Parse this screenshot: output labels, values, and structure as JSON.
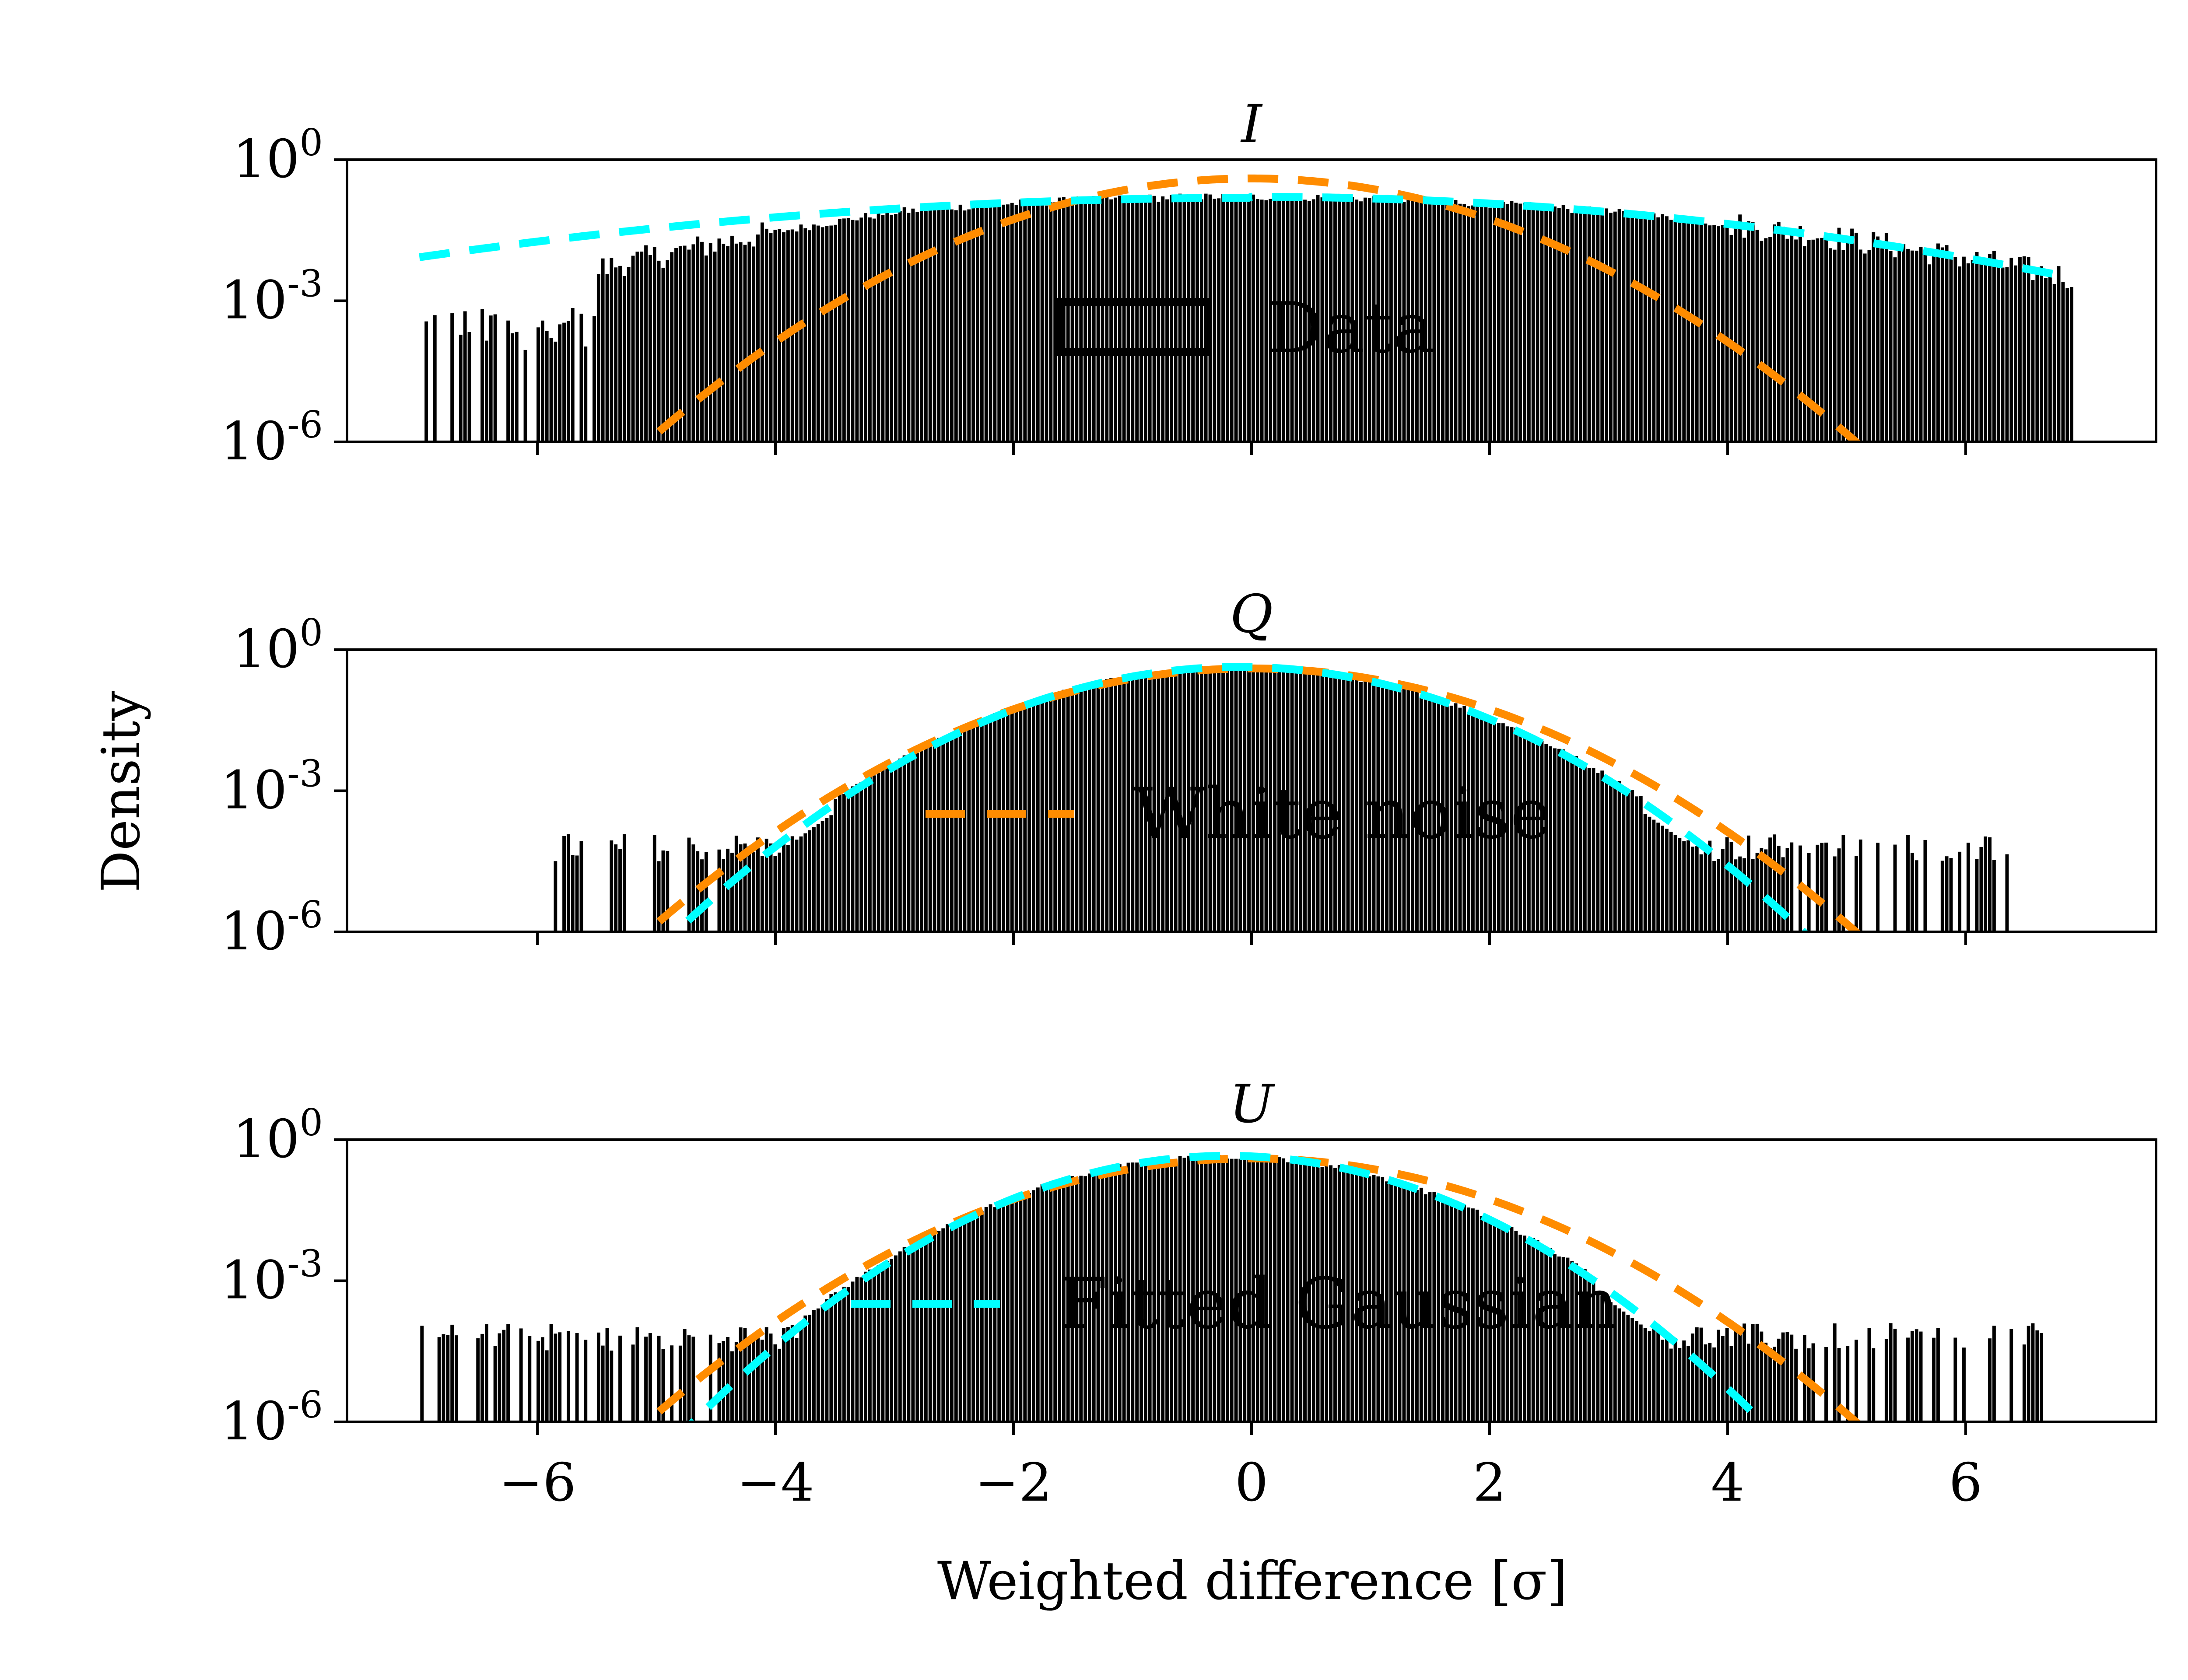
{
  "colors": {
    "data": "#000000",
    "white_noise": "#ff8c00",
    "fitted_gaussian": "#00ffff"
  },
  "chart_data": {
    "type": "histogram",
    "xlabel": "Weighted difference [σ]",
    "ylabel": "Density",
    "xlim": [
      -7.6,
      7.6
    ],
    "ylim": [
      1e-06,
      1
    ],
    "yscale": "log",
    "x_ticks": [
      {
        "value": -6,
        "label": "−6"
      },
      {
        "value": -4,
        "label": "−4"
      },
      {
        "value": -2,
        "label": "−2"
      },
      {
        "value": 0,
        "label": "0"
      },
      {
        "value": 2,
        "label": "2"
      },
      {
        "value": 4,
        "label": "4"
      },
      {
        "value": 6,
        "label": "6"
      }
    ],
    "y_ticks": [
      {
        "value": 1,
        "base": "10",
        "exp": "0"
      },
      {
        "value": 0.001,
        "base": "10",
        "exp": "-3"
      },
      {
        "value": 1e-06,
        "base": "10",
        "exp": "-6"
      }
    ],
    "panels": [
      {
        "title": "I",
        "legend_entry": {
          "label": "Data",
          "style": "box"
        },
        "data_histogram": {
          "x_range": [
            -7.0,
            6.9
          ],
          "approx_shape": "broad",
          "sigma": 2.45,
          "mu": 0.0,
          "tail_sparse_below": -5.5
        },
        "series": [
          {
            "name": "White noise",
            "color": "#ff8c00",
            "mu": 0.0,
            "sigma": 1.0
          },
          {
            "name": "Fitted Gaussian",
            "color": "#00ffff",
            "mu": 0.0,
            "sigma": 2.45
          }
        ]
      },
      {
        "title": "Q",
        "legend_entry": {
          "label": "White noise",
          "style": "dash-orange"
        },
        "data_histogram": {
          "x_range": [
            -5.9,
            6.5
          ],
          "core_range": [
            -3.5,
            3.3
          ]
        },
        "series": [
          {
            "name": "White noise",
            "color": "#ff8c00",
            "mu": 0.0,
            "sigma": 1.0
          },
          {
            "name": "Fitted Gaussian",
            "color": "#00ffff",
            "mu": -0.1,
            "sigma": 0.93
          }
        ]
      },
      {
        "title": "U",
        "legend_entry": {
          "label": "Fitted Gaussian",
          "style": "dash-cyan"
        },
        "data_histogram": {
          "x_range": [
            -7.0,
            6.7
          ],
          "core_range": [
            -3.8,
            2.9
          ]
        },
        "series": [
          {
            "name": "White noise",
            "color": "#ff8c00",
            "mu": 0.0,
            "sigma": 1.0
          },
          {
            "name": "Fitted Gaussian",
            "color": "#00ffff",
            "mu": -0.2,
            "sigma": 0.88
          }
        ]
      }
    ]
  }
}
